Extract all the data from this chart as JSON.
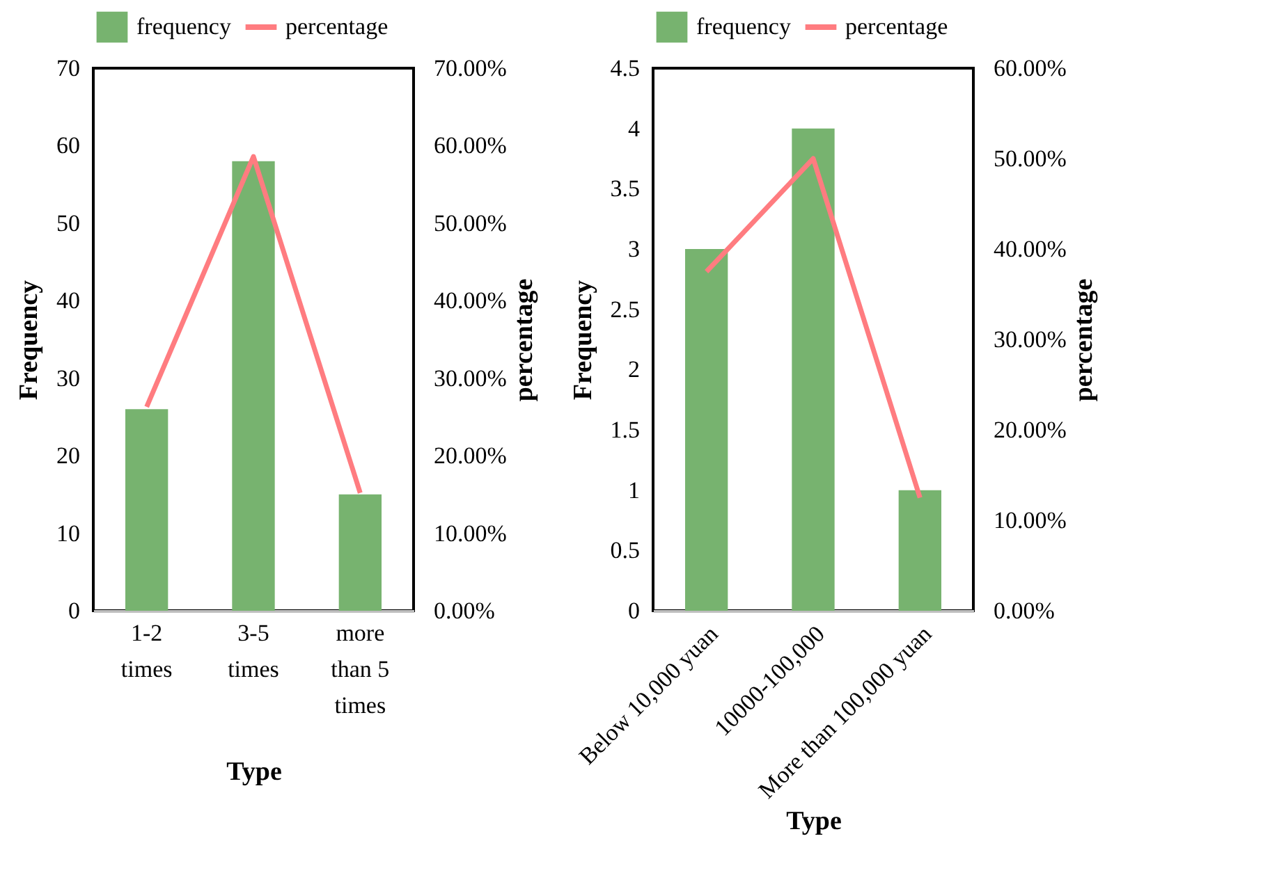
{
  "chart_data": [
    {
      "type": "bar",
      "categories": [
        "1-2 times",
        "3-5 times",
        "more than 5 times"
      ],
      "xlabel": "Type",
      "ylabel": "Frequency",
      "y2label": "percentage",
      "legend": "top",
      "ylim": [
        0,
        70
      ],
      "yticks": [
        0,
        10,
        20,
        30,
        40,
        50,
        60,
        70
      ],
      "y2lim": [
        0,
        70
      ],
      "y2ticks": [
        {
          "value": 0,
          "label": "0.00%"
        },
        {
          "value": 10,
          "label": "10.00%"
        },
        {
          "value": 20,
          "label": "20.00%"
        },
        {
          "value": 30,
          "label": "30.00%"
        },
        {
          "value": 40,
          "label": "40.00%"
        },
        {
          "value": 50,
          "label": "50.00%"
        },
        {
          "value": 60,
          "label": "60.00%"
        },
        {
          "value": 70,
          "label": "70.00%"
        }
      ],
      "series": [
        {
          "name": "frequency",
          "color": "#77b36f",
          "values": [
            26,
            58,
            15
          ]
        },
        {
          "name": "percentage",
          "type": "line",
          "axis": "y2",
          "color": "#ff7c80",
          "values": [
            26.3,
            58.6,
            15.2
          ]
        }
      ]
    },
    {
      "type": "bar",
      "categories": [
        "Below 10,000 yuan",
        "10000-100,000",
        "More than 100,000 yuan"
      ],
      "xlabel": "Type",
      "ylabel": "Frequency",
      "y2label": "percentage",
      "legend": "top",
      "ylim": [
        0,
        4.5
      ],
      "yticks": [
        0,
        0.5,
        1,
        1.5,
        2,
        2.5,
        3,
        3.5,
        4,
        4.5
      ],
      "y2lim": [
        0,
        60
      ],
      "y2ticks": [
        {
          "value": 0,
          "label": "0.00%"
        },
        {
          "value": 10,
          "label": "10.00%"
        },
        {
          "value": 20,
          "label": "20.00%"
        },
        {
          "value": 30,
          "label": "30.00%"
        },
        {
          "value": 40,
          "label": "40.00%"
        },
        {
          "value": 50,
          "label": "50.00%"
        },
        {
          "value": 60,
          "label": "60.00%"
        }
      ],
      "series": [
        {
          "name": "frequency",
          "color": "#77b36f",
          "values": [
            3,
            4,
            1
          ]
        },
        {
          "name": "percentage",
          "type": "line",
          "axis": "y2",
          "color": "#ff7c80",
          "values": [
            37.5,
            50,
            12.5
          ]
        }
      ]
    }
  ]
}
